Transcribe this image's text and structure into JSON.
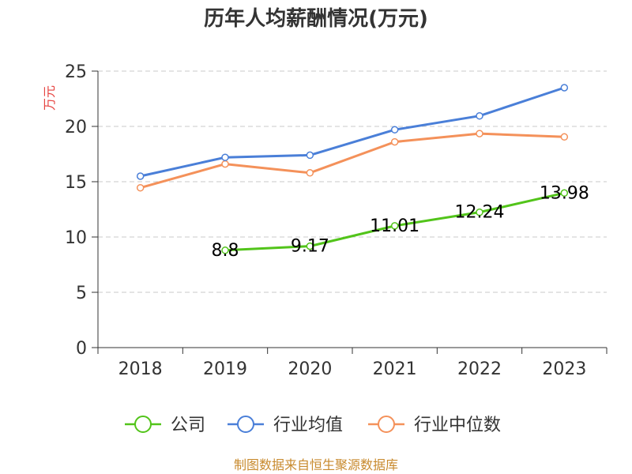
{
  "chart_data": {
    "type": "line",
    "title": "历年人均薪酬情况(万元)",
    "ylabel": "万元",
    "xlabel": "",
    "categories": [
      "2018",
      "2019",
      "2020",
      "2021",
      "2022",
      "2023"
    ],
    "ylim": [
      0,
      25
    ],
    "yticks": [
      0,
      5,
      10,
      15,
      20,
      25
    ],
    "grid": true,
    "legend_position": "bottom",
    "series": [
      {
        "name": "公司",
        "color": "#52c41a",
        "values": [
          null,
          8.8,
          9.17,
          11.01,
          12.24,
          13.98
        ],
        "data_labels": [
          null,
          "8.8",
          "9.17",
          "11.01",
          "12.24",
          "13.98"
        ]
      },
      {
        "name": "行业均值",
        "color": "#4a7fd8",
        "values": [
          15.5,
          17.2,
          17.4,
          19.7,
          20.95,
          23.5
        ]
      },
      {
        "name": "行业中位数",
        "color": "#f4915a",
        "values": [
          14.45,
          16.6,
          15.8,
          18.6,
          19.35,
          19.05
        ]
      }
    ]
  },
  "source_text": "制图数据来自恒生聚源数据库",
  "colors": {
    "ylabel": "#e64340",
    "source": "#c88a2e",
    "grid": "#c8c8c8",
    "axis": "#333333"
  }
}
